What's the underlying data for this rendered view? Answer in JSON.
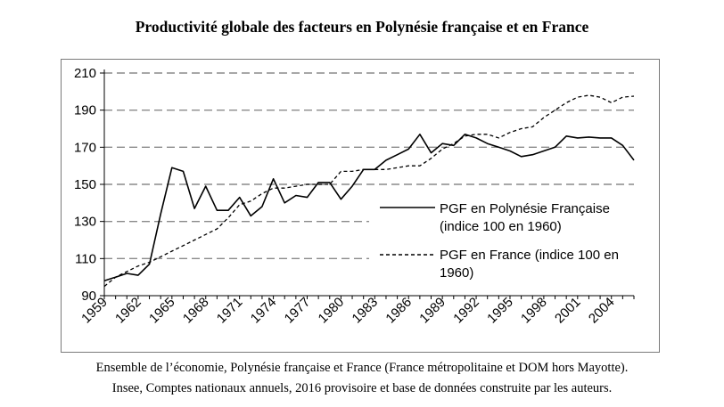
{
  "chart_data": {
    "type": "line",
    "title": "Productivité globale des facteurs en Polynésie française et en France",
    "xlabel": "",
    "ylabel": "",
    "ylim": [
      90,
      210
    ],
    "yticks": [
      90,
      110,
      130,
      150,
      170,
      190,
      210
    ],
    "xlim": [
      1959,
      2006
    ],
    "xticks": [
      "1959",
      "1962",
      "1965",
      "1968",
      "1971",
      "1974",
      "1977",
      "1980",
      "1983",
      "1986",
      "1989",
      "1992",
      "1995",
      "1998",
      "2001",
      "2004"
    ],
    "grid": "horizontal dashed",
    "legend_position": "center-right",
    "x": [
      1959,
      1960,
      1961,
      1962,
      1963,
      1964,
      1965,
      1966,
      1967,
      1968,
      1969,
      1970,
      1971,
      1972,
      1973,
      1974,
      1975,
      1976,
      1977,
      1978,
      1979,
      1980,
      1981,
      1982,
      1983,
      1984,
      1985,
      1986,
      1987,
      1988,
      1989,
      1990,
      1991,
      1992,
      1993,
      1994,
      1995,
      1996,
      1997,
      1998,
      1999,
      2000,
      2001,
      2002,
      2003,
      2004,
      2005,
      2006
    ],
    "series": [
      {
        "name": "PGF en Polynésie Française (indice 100 en 1960)",
        "style": "solid",
        "values": [
          98,
          100,
          102,
          101,
          107,
          134,
          159,
          157,
          137,
          149,
          136,
          136,
          143,
          133,
          138,
          153,
          140,
          144,
          143,
          151,
          151,
          142,
          149,
          158,
          158,
          163,
          166,
          169,
          177,
          167,
          172,
          171,
          177,
          175,
          172,
          170,
          168,
          165,
          166,
          168,
          170,
          176,
          175,
          175.5,
          175,
          175,
          171,
          163
        ]
      },
      {
        "name": "PGF en France (indice 100 en 1960)",
        "style": "dashed",
        "values": [
          95,
          100,
          103,
          106,
          108,
          111,
          114,
          117,
          120,
          123,
          126,
          132,
          139,
          141,
          145,
          148,
          148,
          149,
          150,
          150,
          150,
          157,
          157,
          158,
          158,
          158,
          159,
          160,
          160,
          164,
          169,
          172,
          176,
          177,
          177,
          175,
          178,
          180,
          181,
          186,
          190,
          194,
          197,
          198,
          197,
          194,
          197,
          197.5
        ]
      }
    ]
  },
  "captions": {
    "line1": "Ensemble de l’économie, Polynésie française et France (France métropolitaine et DOM hors Mayotte).",
    "line2": "Insee, Comptes nationaux annuels, 2016 provisoire et base de données construite par les auteurs."
  },
  "legend": {
    "item1_line1": "PGF en Polynésie Française",
    "item1_line2": "(indice 100 en 1960)",
    "item2_line1": "PGF en France (indice 100 en",
    "item2_line2": "1960)"
  }
}
